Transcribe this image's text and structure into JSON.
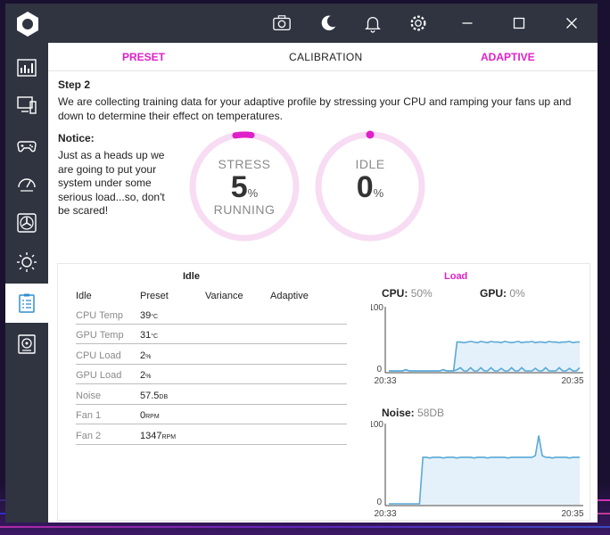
{
  "tabs": {
    "preset": "PRESET",
    "calibration": "CALIBRATION",
    "adaptive": "ADAPTIVE"
  },
  "step": {
    "title": "Step 2",
    "description": "We are collecting training data for your adaptive profile by stressing your CPU and ramping your fans up and down to determine their effect on temperatures."
  },
  "notice": {
    "title": "Notice:",
    "text": "Just as a heads up we are going to put your system under some serious load...so, don't be scared!"
  },
  "gauges": {
    "stress": {
      "top": "STRESS",
      "value": "5",
      "unit": "%",
      "bottom": "RUNNING",
      "level_percent": 5
    },
    "idle": {
      "top": "IDLE",
      "value": "0",
      "unit": "%",
      "level_percent": 0
    }
  },
  "colors": {
    "accent": "#e020c8",
    "ring_track": "#f7dcf3",
    "chart_line": "#5aa9d6",
    "chart_fill": "#e4f1fa"
  },
  "table": {
    "title": "Idle",
    "headers": [
      "Idle",
      "Preset",
      "Variance",
      "Adaptive"
    ],
    "rows": [
      {
        "name": "CPU Temp",
        "value": "39",
        "unit": "°C"
      },
      {
        "name": "GPU Temp",
        "value": "31",
        "unit": "°C"
      },
      {
        "name": "CPU Load",
        "value": "2",
        "unit": "%"
      },
      {
        "name": "GPU Load",
        "value": "2",
        "unit": "%"
      },
      {
        "name": "Noise",
        "value": "57.5",
        "unit": "DB"
      },
      {
        "name": "Fan 1",
        "value": "0",
        "unit": "RPM"
      },
      {
        "name": "Fan 2",
        "value": "1347",
        "unit": "RPM"
      }
    ]
  },
  "load": {
    "title": "Load",
    "cpu_label": "CPU:",
    "cpu_value": "50%",
    "gpu_label": "GPU:",
    "gpu_value": "0%",
    "noise_label": "Noise:",
    "noise_value": "58DB"
  },
  "chart_data": [
    {
      "type": "line",
      "ylim": [
        0,
        100
      ],
      "y_ticks": [
        "100",
        "0"
      ],
      "x_ticks": [
        "20:33",
        "20:35"
      ],
      "series": [
        {
          "name": "CPU",
          "values": [
            0,
            0,
            0,
            0,
            0,
            2,
            0,
            0,
            0,
            0,
            0,
            0,
            0,
            0,
            0,
            0,
            2,
            0,
            0,
            0,
            45,
            45,
            44,
            45,
            46,
            45,
            44,
            46,
            45,
            44,
            46,
            45,
            45,
            44,
            46,
            45,
            44,
            45,
            46,
            44,
            45,
            45,
            46,
            44,
            45,
            45,
            44,
            46,
            45,
            45,
            44,
            45,
            45,
            46,
            44,
            45,
            45
          ]
        },
        {
          "name": "GPU",
          "values": [
            0,
            0,
            0,
            0,
            0,
            2,
            0,
            0,
            0,
            0,
            0,
            0,
            0,
            0,
            0,
            0,
            2,
            0,
            0,
            0,
            2,
            5,
            0,
            0,
            5,
            0,
            0,
            5,
            0,
            0,
            5,
            0,
            0,
            4,
            0,
            0,
            5,
            0,
            0,
            5,
            0,
            0,
            0,
            4,
            0,
            0,
            5,
            0,
            0,
            0,
            5,
            0,
            0,
            4,
            0,
            0,
            5
          ]
        }
      ]
    },
    {
      "type": "area",
      "ylim": [
        0,
        100
      ],
      "y_ticks": [
        "100",
        "0"
      ],
      "x_ticks": [
        "20:33",
        "20:35"
      ],
      "series": [
        {
          "name": "Noise",
          "values": [
            0,
            0,
            0,
            0,
            0,
            0,
            0,
            0,
            0,
            0,
            58,
            58,
            57,
            58,
            58,
            58,
            57,
            58,
            58,
            58,
            57,
            58,
            58,
            58,
            58,
            57,
            58,
            58,
            58,
            57,
            58,
            58,
            58,
            58,
            58,
            57,
            58,
            58,
            58,
            58,
            58,
            58,
            58,
            60,
            85,
            60,
            58,
            58,
            57,
            58,
            58,
            58,
            58,
            57,
            58,
            58,
            58
          ]
        }
      ]
    }
  ]
}
